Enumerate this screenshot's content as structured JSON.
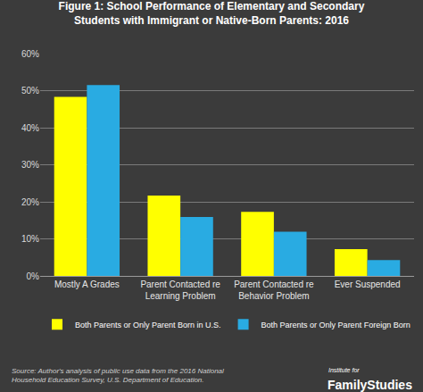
{
  "chart_data": {
    "type": "bar",
    "title": "Figure 1: School Performance of Elementary and Secondary Students with Immigrant or Native-Born Parents: 2016",
    "categories": [
      "Mostly A Grades",
      "Parent Contacted re Learning Problem",
      "Parent Contacted re Behavior Problem",
      "Ever Suspended"
    ],
    "series": [
      {
        "name": "Both Parents or Only Parent Born in U.S.",
        "color": "#ffff00",
        "values": [
          48.3,
          21.7,
          17.3,
          7.2
        ]
      },
      {
        "name": "Both Parents or Only Parent Foreign Born",
        "color": "#29abe2",
        "values": [
          51.5,
          15.9,
          11.9,
          4.3
        ]
      }
    ],
    "ylim": [
      0,
      60
    ],
    "yticks": [
      {
        "value": 0,
        "label": "0%"
      },
      {
        "value": 10,
        "label": "10%"
      },
      {
        "value": 20,
        "label": "20%"
      },
      {
        "value": 30,
        "label": "30%"
      },
      {
        "value": 40,
        "label": "40%"
      },
      {
        "value": 50,
        "label": "50%"
      },
      {
        "value": 60,
        "label": "60%"
      }
    ],
    "grid": true,
    "legend": "bottom",
    "annotations": [
      "Source: Author's analysis of public use data from the 2016 National Household Education Survey, U.S. Department of Education.",
      "Institute for",
      "FamilyStudies"
    ]
  }
}
